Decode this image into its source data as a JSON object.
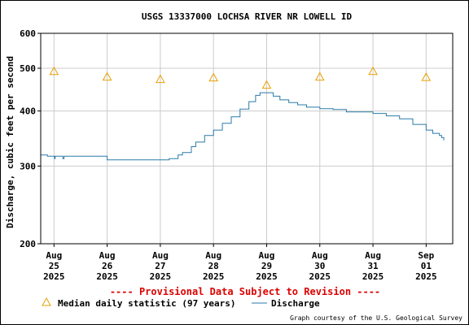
{
  "chart_data": {
    "type": "line",
    "title": "USGS 13337000 LOCHSA RIVER NR LOWELL ID",
    "ylabel": "Discharge, cubic feet per second",
    "y_scale": "log",
    "ylim": [
      200,
      600
    ],
    "yticks": [
      200,
      300,
      400,
      500,
      600
    ],
    "xlim": [
      "2025-08-24T18:00",
      "2025-09-01T12:00"
    ],
    "xticks": [
      {
        "date": "2025-08-25",
        "month": "Aug",
        "day": "25",
        "year": "2025"
      },
      {
        "date": "2025-08-26",
        "month": "Aug",
        "day": "26",
        "year": "2025"
      },
      {
        "date": "2025-08-27",
        "month": "Aug",
        "day": "27",
        "year": "2025"
      },
      {
        "date": "2025-08-28",
        "month": "Aug",
        "day": "28",
        "year": "2025"
      },
      {
        "date": "2025-08-29",
        "month": "Aug",
        "day": "29",
        "year": "2025"
      },
      {
        "date": "2025-08-30",
        "month": "Aug",
        "day": "30",
        "year": "2025"
      },
      {
        "date": "2025-08-31",
        "month": "Aug",
        "day": "31",
        "year": "2025"
      },
      {
        "date": "2025-09-01",
        "month": "Sep",
        "day": "01",
        "year": "2025"
      }
    ],
    "grid": true,
    "legend_position": "bottom",
    "series": [
      {
        "name": "Median daily statistic (97 years)",
        "marker": "triangle",
        "color": "#e8a000",
        "x": [
          "2025-08-25",
          "2025-08-26",
          "2025-08-27",
          "2025-08-28",
          "2025-08-29",
          "2025-08-30",
          "2025-08-31",
          "2025-09-01"
        ],
        "y": [
          492,
          478,
          472,
          476,
          458,
          478,
          492,
          477
        ]
      },
      {
        "name": "Discharge",
        "color": "#2a7ba8",
        "x": [
          "2025-08-24T18:00",
          "2025-08-24T21:00",
          "2025-08-25T00:00",
          "2025-08-25T00:15",
          "2025-08-25T00:30",
          "2025-08-25T03:00",
          "2025-08-25T04:00",
          "2025-08-25T04:30",
          "2025-08-25T05:00",
          "2025-08-25T10:00",
          "2025-08-25T16:00",
          "2025-08-26T00:00",
          "2025-08-27T00:00",
          "2025-08-27T02:00",
          "2025-08-27T04:00",
          "2025-08-27T08:00",
          "2025-08-27T10:00",
          "2025-08-27T14:00",
          "2025-08-27T16:00",
          "2025-08-27T20:00",
          "2025-08-28T00:00",
          "2025-08-28T04:00",
          "2025-08-28T08:00",
          "2025-08-28T12:00",
          "2025-08-28T16:00",
          "2025-08-28T19:00",
          "2025-08-28T21:00",
          "2025-08-29T00:00",
          "2025-08-29T03:00",
          "2025-08-29T06:00",
          "2025-08-29T10:00",
          "2025-08-29T14:00",
          "2025-08-29T18:00",
          "2025-08-30T00:00",
          "2025-08-30T06:00",
          "2025-08-30T12:00",
          "2025-08-30T18:00",
          "2025-08-31T00:00",
          "2025-08-31T06:00",
          "2025-08-31T12:00",
          "2025-08-31T18:00",
          "2025-09-01T00:00",
          "2025-09-01T03:00",
          "2025-09-01T06:00",
          "2025-09-01T07:00",
          "2025-09-01T08:00"
        ],
        "y": [
          318,
          316,
          316,
          312,
          316,
          316,
          312,
          316,
          316,
          316,
          316,
          310,
          310,
          310,
          312,
          318,
          322,
          332,
          340,
          352,
          362,
          375,
          388,
          404,
          420,
          434,
          440,
          440,
          432,
          424,
          418,
          413,
          408,
          405,
          403,
          398,
          398,
          395,
          390,
          384,
          373,
          362,
          356,
          352,
          348,
          343
        ]
      }
    ],
    "annotations": [
      "---- Provisional Data Subject to Revision ----"
    ],
    "credit": "Graph courtesy of the U.S. Geological Survey"
  }
}
